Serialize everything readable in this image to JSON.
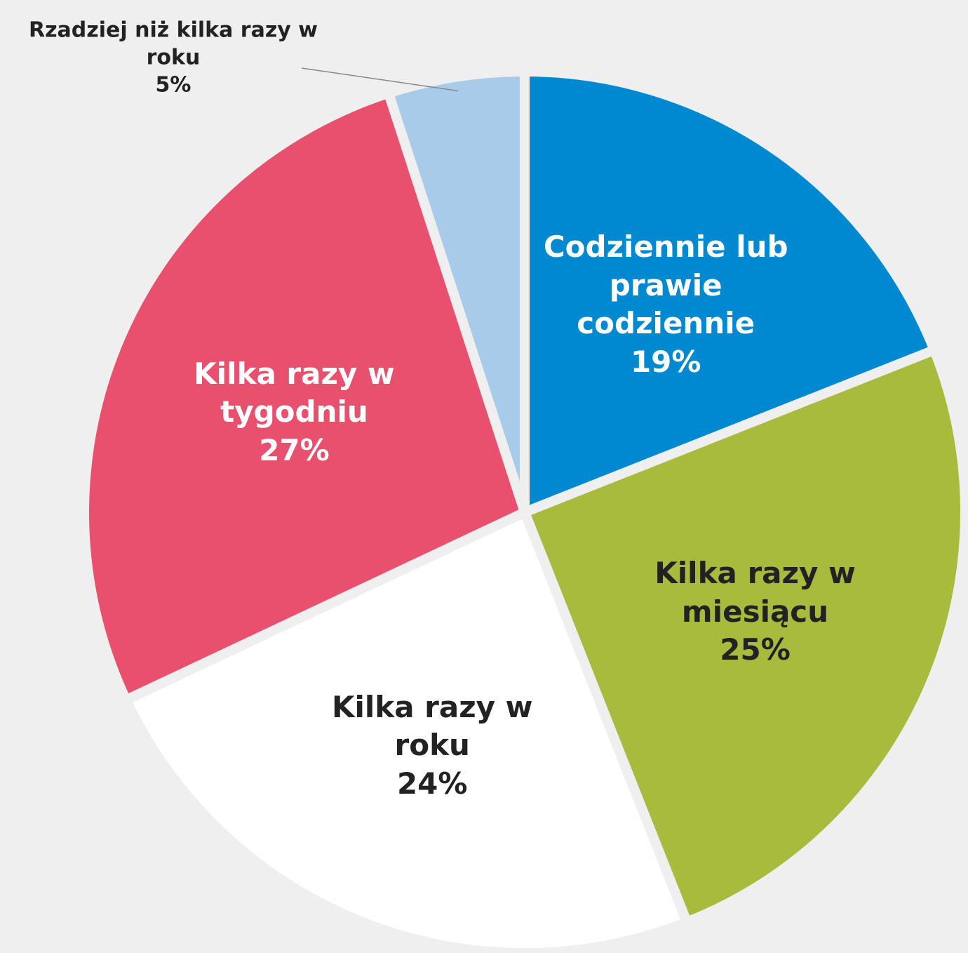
{
  "chart_data": {
    "type": "pie",
    "categories": [
      "Codziennie lub prawie codziennie",
      "Kilka razy w miesiącu",
      "Kilka razy w roku",
      "Kilka razy w tygodniu",
      "Rzadziej niż kilka razy w roku"
    ],
    "values": [
      19,
      25,
      24,
      27,
      5
    ],
    "value_labels": [
      "19%",
      "25%",
      "24%",
      "27%",
      "5%"
    ],
    "colors": [
      "#0088d1",
      "#a8bb3d",
      "#ffffff",
      "#e8506e",
      "#a8cbea"
    ]
  }
}
